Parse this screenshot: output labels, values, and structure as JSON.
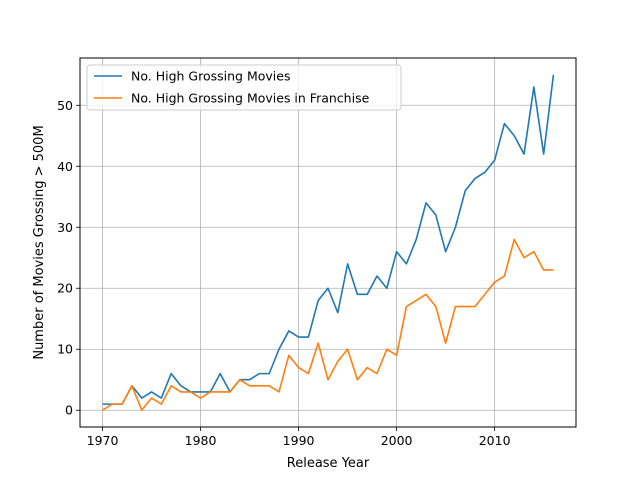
{
  "chart_data": {
    "type": "line",
    "title": "",
    "xlabel": "Release Year",
    "ylabel": "Number of Movies Grossing > 500M",
    "xlim": [
      1967.7,
      2018.3
    ],
    "ylim": [
      -2.75,
      57.75
    ],
    "xticks": [
      1970,
      1980,
      1990,
      2000,
      2010
    ],
    "yticks": [
      0,
      10,
      20,
      30,
      40,
      50
    ],
    "grid": true,
    "legend_position": "top-left",
    "x": [
      1970,
      1971,
      1972,
      1973,
      1974,
      1975,
      1976,
      1977,
      1978,
      1979,
      1980,
      1981,
      1982,
      1983,
      1984,
      1985,
      1986,
      1987,
      1988,
      1989,
      1990,
      1991,
      1992,
      1993,
      1994,
      1995,
      1996,
      1997,
      1998,
      1999,
      2000,
      2001,
      2002,
      2003,
      2004,
      2005,
      2006,
      2007,
      2008,
      2009,
      2010,
      2011,
      2012,
      2013,
      2014,
      2015,
      2016
    ],
    "series": [
      {
        "name": "No. High Grossing Movies",
        "color": "#1f77b4",
        "values": [
          1,
          1,
          1,
          4,
          2,
          3,
          2,
          6,
          4,
          3,
          3,
          3,
          6,
          3,
          5,
          5,
          6,
          6,
          10,
          13,
          12,
          12,
          18,
          20,
          16,
          24,
          19,
          19,
          22,
          20,
          26,
          24,
          28,
          34,
          32,
          26,
          30,
          36,
          38,
          39,
          41,
          47,
          45,
          42,
          53,
          42,
          55
        ]
      },
      {
        "name": "No. High Grossing Movies in Franchise",
        "color": "#ff7f0e",
        "values": [
          0,
          1,
          1,
          4,
          0,
          2,
          1,
          4,
          3,
          3,
          2,
          3,
          3,
          3,
          5,
          4,
          4,
          4,
          3,
          9,
          7,
          6,
          11,
          5,
          8,
          10,
          5,
          7,
          6,
          10,
          9,
          17,
          18,
          19,
          17,
          11,
          17,
          17,
          17,
          19,
          21,
          22,
          28,
          25,
          26,
          23,
          23
        ]
      }
    ]
  }
}
